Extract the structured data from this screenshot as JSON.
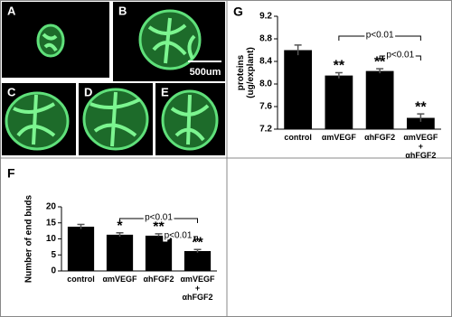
{
  "images": [
    {
      "label": "A"
    },
    {
      "label": "B",
      "scale_label": "500um"
    },
    {
      "label": "C"
    },
    {
      "label": "D"
    },
    {
      "label": "E"
    }
  ],
  "chart_data": [
    {
      "type": "bar",
      "panel": "G",
      "ylabel": [
        "proteins",
        "(ug/explant)"
      ],
      "categories": [
        "control",
        "αmVEGF",
        "αhFGF2",
        "αmVEGF + αhFGF2"
      ],
      "values": [
        8.6,
        8.15,
        8.23,
        7.4
      ],
      "errors": [
        0.09,
        0.05,
        0.04,
        0.07
      ],
      "star_labels": [
        null,
        "**",
        "**",
        "**"
      ],
      "significance": [
        "p<0.01",
        "p<0.01"
      ],
      "color": "#000000",
      "ylim": [
        7.2,
        9.2
      ],
      "yticks": [
        7.2,
        7.6,
        {
          "value": 8,
          "label": "8.0"
        },
        8.4,
        8.8,
        9.2
      ]
    },
    {
      "type": "bar",
      "panel": "F",
      "ylabel": [
        "Number of end buds"
      ],
      "categories": [
        "control",
        "αmVEGF",
        "αhFGF2",
        "αmVEGF + αhFGF2"
      ],
      "values": [
        13.8,
        11.3,
        11.0,
        6.2
      ],
      "errors": [
        0.7,
        0.6,
        0.6,
        0.5
      ],
      "star_labels": [
        null,
        "*",
        "**",
        "**"
      ],
      "significance": [
        "p<0.01",
        "p<0.01"
      ],
      "color": "#000000",
      "ylim": [
        0,
        20
      ],
      "yticks": [
        0,
        5,
        10,
        15,
        20
      ]
    }
  ]
}
